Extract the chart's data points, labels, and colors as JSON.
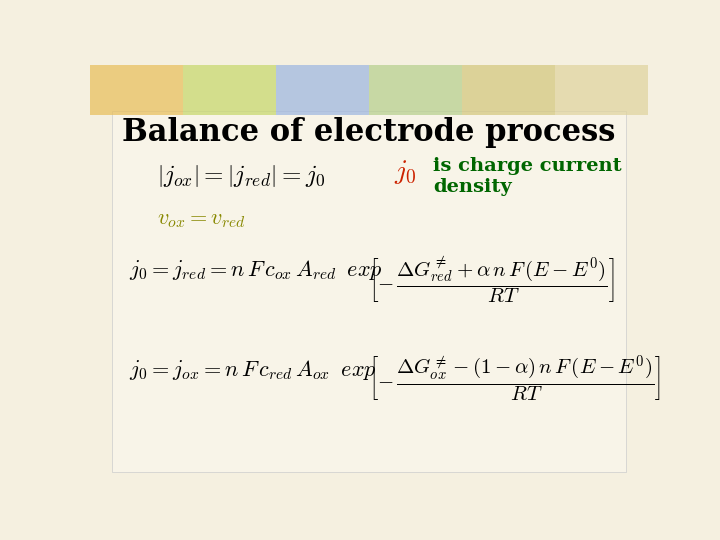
{
  "title": "Balance of electrode process",
  "title_fontsize": 22,
  "title_fontweight": "bold",
  "title_color": "#000000",
  "bg_color": "#f5f0e0",
  "eq1_color": "#000000",
  "j0_color": "#cc2200",
  "j0_text": "is charge current\ndensity",
  "j0_text_color": "#006600",
  "vox_vred_color": "#888800",
  "formula_color": "#000000",
  "strip_colors": [
    "#e8c060",
    "#c8d870",
    "#a0b8e0",
    "#b8d090",
    "#d4c880",
    "#e0d4a0"
  ]
}
